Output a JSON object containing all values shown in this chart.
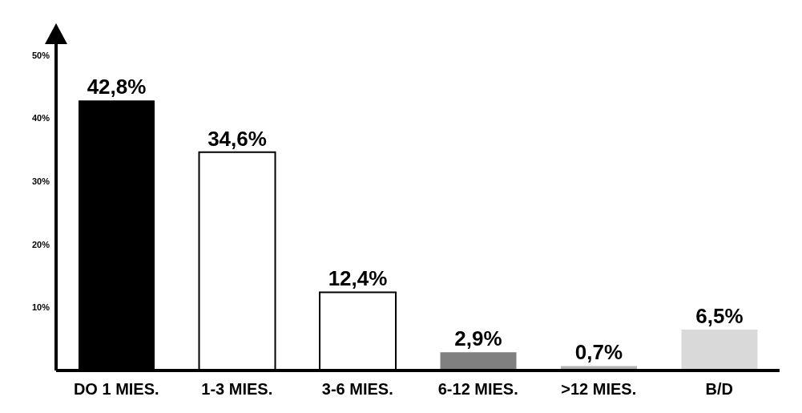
{
  "chart_data": {
    "type": "bar",
    "categories": [
      "DO 1 MIES.",
      "1-3 MIES.",
      "3-6 MIES.",
      "6-12 MIES.",
      ">12 MIES.",
      "B/D"
    ],
    "values": [
      42.8,
      34.6,
      12.4,
      2.9,
      0.7,
      6.5
    ],
    "colors": [
      "#000000",
      "#ffffff",
      "#ffffff",
      "#808080",
      "#b3b3b3",
      "#d9d9d9"
    ],
    "value_labels": [
      "42,8%",
      "34,6%",
      "12,4%",
      "2,9%",
      "0,7%",
      "6,5%"
    ],
    "ylim": [
      0,
      52
    ],
    "yticks": [
      {
        "value": 10,
        "label": "10%"
      },
      {
        "value": 20,
        "label": "20%"
      },
      {
        "value": 30,
        "label": "30%"
      },
      {
        "value": 40,
        "label": "40%"
      },
      {
        "value": 50,
        "label": "50%"
      }
    ],
    "grid": false,
    "legend": false
  }
}
